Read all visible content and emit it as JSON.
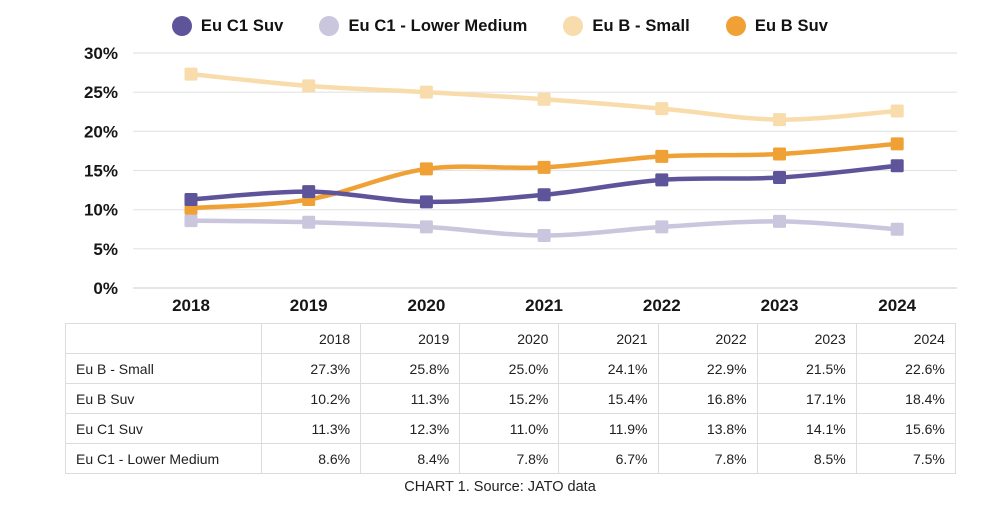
{
  "caption": "CHART 1. Source: JATO data",
  "chart_data": {
    "type": "line",
    "title": "",
    "x": [
      "2018",
      "2019",
      "2020",
      "2021",
      "2022",
      "2023",
      "2024"
    ],
    "series": [
      {
        "name": "Eu C1 Suv",
        "color": "#5d549a",
        "values": [
          11.3,
          12.3,
          11.0,
          11.9,
          13.8,
          14.1,
          15.6
        ]
      },
      {
        "name": "Eu C1 - Lower Medium",
        "color": "#c9c6de",
        "values": [
          8.6,
          8.4,
          7.8,
          6.7,
          7.8,
          8.5,
          7.5
        ]
      },
      {
        "name": "Eu B - Small",
        "color": "#f8dcab",
        "values": [
          27.3,
          25.8,
          25.0,
          24.1,
          22.9,
          21.5,
          22.6
        ]
      },
      {
        "name": "Eu B Suv",
        "color": "#f0a136",
        "values": [
          10.2,
          11.3,
          15.2,
          15.4,
          16.8,
          17.1,
          18.4
        ]
      }
    ],
    "ylim": [
      0,
      30
    ],
    "ytick_step": 5,
    "ytick_suffix": "%",
    "grid": true,
    "legend_position": "top",
    "marker": "square",
    "line_style": "smooth"
  },
  "table": {
    "header": [
      "",
      "2018",
      "2019",
      "2020",
      "2021",
      "2022",
      "2023",
      "2024"
    ],
    "rows": [
      {
        "label": "Eu B - Small",
        "values": [
          "27.3%",
          "25.8%",
          "25.0%",
          "24.1%",
          "22.9%",
          "21.5%",
          "22.6%"
        ]
      },
      {
        "label": "Eu B Suv",
        "values": [
          "10.2%",
          "11.3%",
          "15.2%",
          "15.4%",
          "16.8%",
          "17.1%",
          "18.4%"
        ]
      },
      {
        "label": "Eu C1 Suv",
        "values": [
          "11.3%",
          "12.3%",
          "11.0%",
          "11.9%",
          "13.8%",
          "14.1%",
          "15.6%"
        ]
      },
      {
        "label": "Eu C1 - Lower Medium",
        "values": [
          "8.6%",
          "8.4%",
          "7.8%",
          "6.7%",
          "7.8%",
          "8.5%",
          "7.5%"
        ]
      }
    ]
  }
}
